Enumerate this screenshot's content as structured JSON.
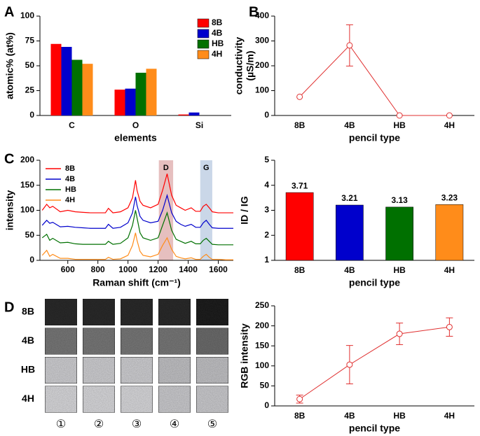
{
  "chart_data": [
    {
      "type": "bar",
      "panel": "A",
      "xlabel": "elements",
      "ylabel": [
        "atomic% (at%)"
      ],
      "categories": [
        "C",
        "O",
        "Si"
      ],
      "series": [
        {
          "name": "8B",
          "color": "#ff0000",
          "values": [
            72,
            26,
            1
          ]
        },
        {
          "name": "4B",
          "color": "#0000cc",
          "values": [
            69,
            27,
            3
          ]
        },
        {
          "name": "HB",
          "color": "#007000",
          "values": [
            56,
            43,
            0
          ]
        },
        {
          "name": "4H",
          "color": "#ff8c1a",
          "values": [
            52,
            47,
            0
          ]
        }
      ],
      "ylim": [
        0,
        100
      ],
      "yticks": [
        0,
        25,
        50,
        75,
        100
      ],
      "legend": "upper right"
    },
    {
      "type": "line",
      "panel": "B",
      "xlabel": "pencil type",
      "ylabel": [
        "conductivity",
        "(µS/m)"
      ],
      "categories": [
        "8B",
        "4B",
        "HB",
        "4H"
      ],
      "series": [
        {
          "color": "#e03030",
          "values": [
            75,
            282,
            0,
            0
          ],
          "errors": [
            null,
            83,
            null,
            null
          ]
        }
      ],
      "ylim": [
        0,
        400
      ],
      "yticks": [
        0,
        100,
        200,
        300,
        400
      ]
    },
    {
      "type": "line",
      "panel": "C",
      "xlabel": "Raman shift (cm⁻¹)",
      "ylabel": [
        "intensity"
      ],
      "x": [
        430,
        460,
        480,
        500,
        550,
        600,
        650,
        700,
        750,
        800,
        850,
        870,
        900,
        950,
        1000,
        1030,
        1050,
        1060,
        1080,
        1100,
        1150,
        1200,
        1230,
        1260,
        1290,
        1320,
        1350,
        1380,
        1420,
        1450,
        1480,
        1500,
        1520,
        1540,
        1560,
        1600,
        1650,
        1700
      ],
      "series": [
        {
          "name": "8B",
          "color": "#ff0000",
          "values": [
            100,
            112,
            105,
            108,
            97,
            100,
            97,
            96,
            95,
            95,
            95,
            104,
            95,
            97,
            105,
            125,
            160,
            140,
            118,
            110,
            105,
            112,
            140,
            173,
            130,
            110,
            105,
            100,
            105,
            98,
            98,
            108,
            112,
            105,
            97,
            95,
            95,
            95
          ]
        },
        {
          "name": "4B",
          "color": "#0000cc",
          "values": [
            70,
            80,
            74,
            76,
            67,
            68,
            66,
            65,
            64,
            64,
            64,
            72,
            64,
            66,
            75,
            95,
            127,
            110,
            88,
            80,
            75,
            78,
            100,
            130,
            95,
            78,
            72,
            68,
            72,
            66,
            66,
            75,
            80,
            72,
            65,
            64,
            64,
            64
          ]
        },
        {
          "name": "HB",
          "color": "#007000",
          "values": [
            45,
            52,
            40,
            44,
            35,
            36,
            33,
            32,
            32,
            32,
            32,
            38,
            32,
            34,
            45,
            70,
            100,
            85,
            55,
            45,
            40,
            45,
            70,
            95,
            60,
            42,
            38,
            34,
            38,
            33,
            33,
            40,
            44,
            38,
            32,
            31,
            31,
            31
          ]
        },
        {
          "name": "4H",
          "color": "#ff8c1a",
          "values": [
            10,
            20,
            8,
            12,
            4,
            4,
            2,
            2,
            2,
            2,
            2,
            6,
            2,
            3,
            10,
            30,
            55,
            40,
            18,
            10,
            7,
            12,
            30,
            45,
            22,
            8,
            5,
            3,
            5,
            2,
            2,
            8,
            12,
            6,
            2,
            2,
            1,
            1
          ]
        }
      ],
      "bands": [
        {
          "label": "D",
          "range": [
            1205,
            1300
          ],
          "color": "#c87070"
        },
        {
          "label": "G",
          "range": [
            1480,
            1560
          ],
          "color": "#8aa6cc"
        }
      ],
      "xlim": [
        415,
        1700
      ],
      "xticks": [
        600,
        800,
        1000,
        1200,
        1400,
        1600
      ],
      "ylim": [
        0,
        200
      ],
      "yticks": [
        0,
        50,
        100,
        150,
        200
      ],
      "legend": "upper left"
    },
    {
      "type": "bar",
      "xlabel": "pencil type",
      "ylabel": [
        "ID / IG"
      ],
      "categories": [
        "8B",
        "4B",
        "HB",
        "4H"
      ],
      "values": [
        3.71,
        3.21,
        3.13,
        3.23
      ],
      "colors": [
        "#ff0000",
        "#0000cc",
        "#007000",
        "#ff8c1a"
      ],
      "data_labels": true,
      "ylim": [
        1,
        5
      ],
      "yticks": [
        1,
        2,
        3,
        4,
        5
      ]
    },
    {
      "type": "line",
      "xlabel": "pencil type",
      "ylabel": [
        "RGB intensity"
      ],
      "categories": [
        "8B",
        "4B",
        "HB",
        "4H"
      ],
      "series": [
        {
          "color": "#e03030",
          "values": [
            17,
            103,
            180,
            197
          ],
          "errors": [
            10,
            48,
            27,
            23
          ]
        }
      ],
      "ylim": [
        0,
        250
      ],
      "yticks": [
        0,
        50,
        100,
        150,
        200,
        250
      ]
    }
  ],
  "image_grid": {
    "panel": "D",
    "rows": [
      "8B",
      "4B",
      "HB",
      "4H"
    ],
    "columns": [
      "①",
      "②",
      "③",
      "④",
      "⑤"
    ]
  }
}
